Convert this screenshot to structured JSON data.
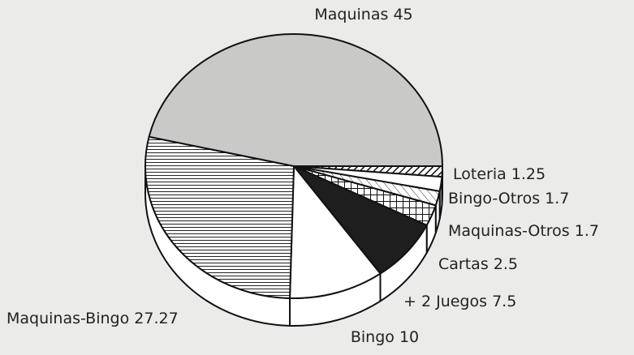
{
  "chart_data": {
    "type": "pie",
    "categories": [
      "Loteria",
      "Bingo-Otros",
      "Maquinas-Otros",
      "Cartas",
      "+ 2 Juegos",
      "Bingo",
      "Maquinas-Bingo",
      "Maquinas"
    ],
    "values": [
      1.25,
      1.7,
      1.7,
      2.5,
      7.5,
      10,
      27.27,
      45
    ],
    "colors": [
      "#ffffff",
      "#ffffff",
      "#ffffff",
      "#ffffff",
      "#1e1e1e",
      "#ffffff",
      "#ffffff",
      "#c9c9c7"
    ],
    "patterns": [
      "diagonal",
      "none",
      "diagonal-light",
      "crosshatch",
      "none",
      "none",
      "horizontal",
      "none"
    ],
    "three_d": true
  }
}
